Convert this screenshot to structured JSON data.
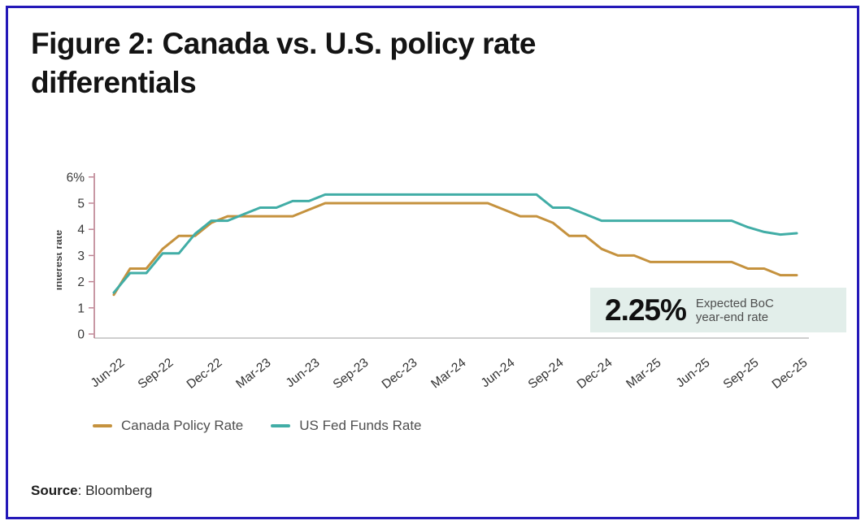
{
  "figure": {
    "title_line1": "Figure 2: Canada vs. U.S. policy rate",
    "title_line2": "differentials",
    "source_label": "Source",
    "source_value": ": Bloomberg"
  },
  "callout": {
    "value": "2.25%",
    "caption_line1": "Expected BoC",
    "caption_line2": "year-end rate",
    "bg": "#e2eeea"
  },
  "chart_data": {
    "type": "line",
    "title": "Canada vs. U.S. policy rate differentials",
    "ylabel": "Interest rate",
    "xlabel": "",
    "ylim": [
      0,
      6
    ],
    "grid": false,
    "legend_position": "bottom",
    "y_tick_values": [
      0,
      1,
      2,
      3,
      4,
      5,
      6
    ],
    "y_tick_labels": [
      "0",
      "1",
      "2",
      "3",
      "4",
      "5",
      "6%"
    ],
    "x_tick_every": 3,
    "x_tick_labels": [
      "Jun-22",
      "Sep-22",
      "Dec-22",
      "Mar-23",
      "Jun-23",
      "Sep-23",
      "Dec-23",
      "Mar-24",
      "Jun-24",
      "Sep-24",
      "Dec-24",
      "Mar-25",
      "Jun-25",
      "Sep-25",
      "Dec-25"
    ],
    "categories": [
      "Jun-22",
      "Jul-22",
      "Aug-22",
      "Sep-22",
      "Oct-22",
      "Nov-22",
      "Dec-22",
      "Jan-23",
      "Feb-23",
      "Mar-23",
      "Apr-23",
      "May-23",
      "Jun-23",
      "Jul-23",
      "Aug-23",
      "Sep-23",
      "Oct-23",
      "Nov-23",
      "Dec-23",
      "Jan-24",
      "Feb-24",
      "Mar-24",
      "Apr-24",
      "May-24",
      "Jun-24",
      "Jul-24",
      "Aug-24",
      "Sep-24",
      "Oct-24",
      "Nov-24",
      "Dec-24",
      "Jan-25",
      "Feb-25",
      "Mar-25",
      "Apr-25",
      "May-25",
      "Jun-25",
      "Jul-25",
      "Aug-25",
      "Sep-25",
      "Oct-25",
      "Nov-25",
      "Dec-25"
    ],
    "series": [
      {
        "name": "Canada Policy Rate",
        "color": "#c5923e",
        "values": [
          1.5,
          2.5,
          2.5,
          3.25,
          3.75,
          3.75,
          4.25,
          4.5,
          4.5,
          4.5,
          4.5,
          4.5,
          4.75,
          5,
          5,
          5,
          5,
          5,
          5,
          5,
          5,
          5,
          5,
          5,
          4.75,
          4.5,
          4.5,
          4.25,
          3.75,
          3.75,
          3.25,
          3,
          3,
          2.75,
          2.75,
          2.75,
          2.75,
          2.75,
          2.75,
          2.5,
          2.5,
          2.25,
          2.25
        ]
      },
      {
        "name": "US Fed Funds Rate",
        "color": "#41ada6",
        "values": [
          1.58,
          2.33,
          2.33,
          3.08,
          3.08,
          3.83,
          4.33,
          4.33,
          4.58,
          4.83,
          4.83,
          5.08,
          5.08,
          5.33,
          5.33,
          5.33,
          5.33,
          5.33,
          5.33,
          5.33,
          5.33,
          5.33,
          5.33,
          5.33,
          5.33,
          5.33,
          5.33,
          4.83,
          4.83,
          4.58,
          4.33,
          4.33,
          4.33,
          4.33,
          4.33,
          4.33,
          4.33,
          4.33,
          4.33,
          4.08,
          3.9,
          3.8,
          3.85
        ]
      }
    ],
    "axis_colors": {
      "y_axis": "#ba7e8e",
      "x_axis": "#cfcfcf"
    },
    "tick_text_color": "#3a3a3a"
  }
}
